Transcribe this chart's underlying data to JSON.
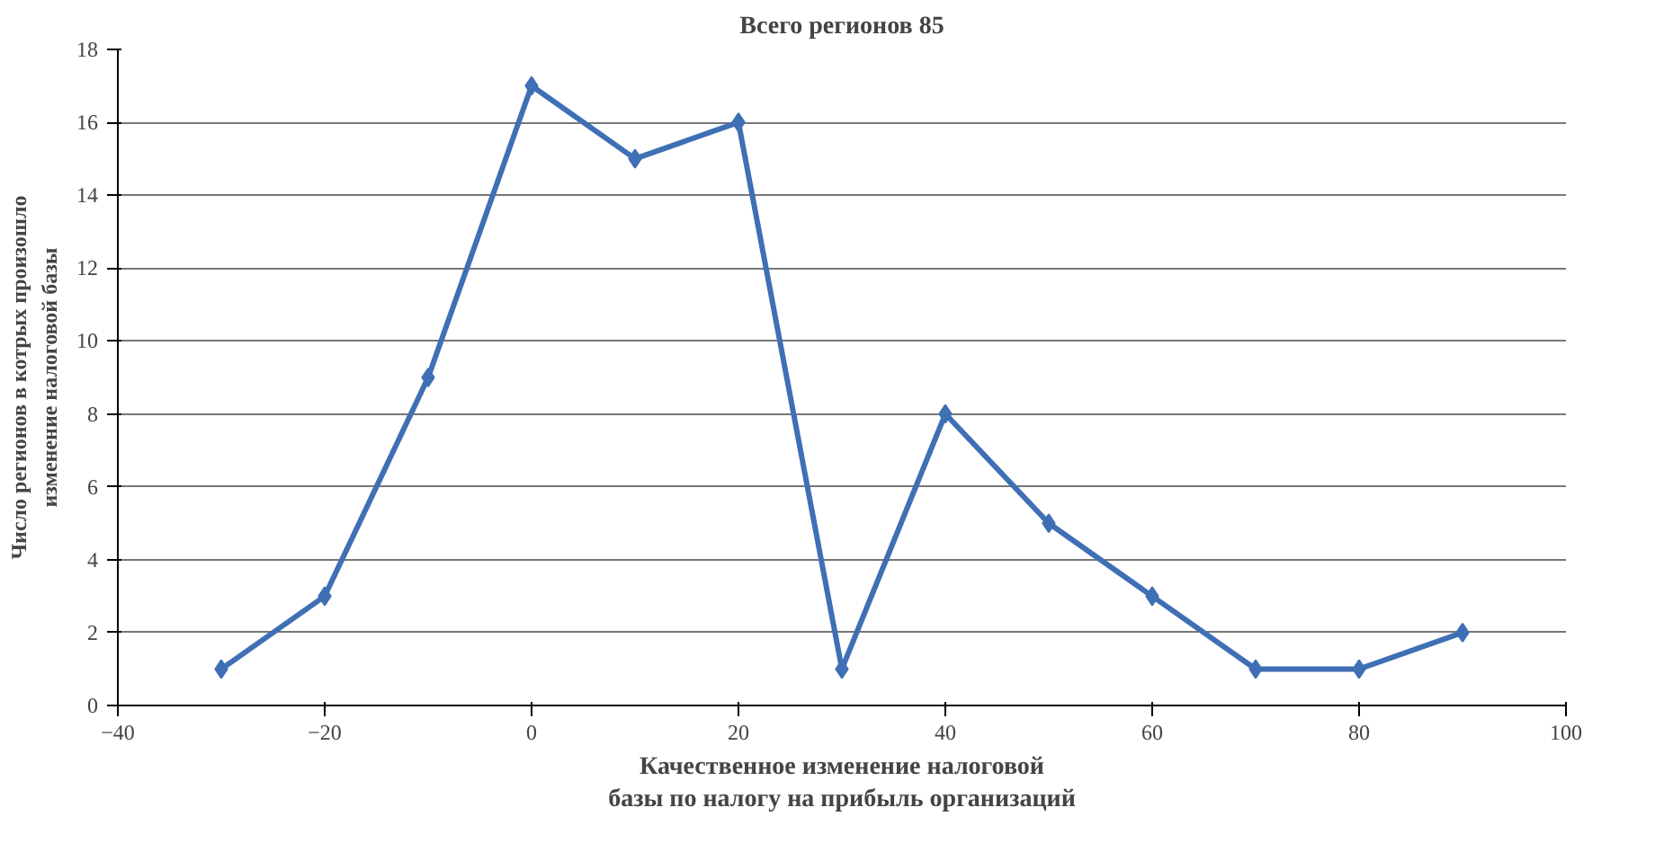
{
  "chart_data": {
    "type": "line",
    "title": "Всего регионов 85",
    "xlabel": "Качественное изменение налоговой базы по налогу на прибыль организаций",
    "ylabel": "Число регионов в котрых произошло изменение налоговой базы",
    "x": [
      -30,
      -20,
      -10,
      0,
      10,
      20,
      30,
      40,
      50,
      60,
      70,
      80,
      90
    ],
    "series": [
      {
        "color": "#3f6fb5",
        "values": [
          1,
          3,
          9,
          17,
          15,
          16,
          1,
          8,
          5,
          3,
          1,
          1,
          2
        ]
      }
    ],
    "xlim": [
      -40,
      100
    ],
    "xticks": [
      -40,
      -20,
      0,
      20,
      40,
      60,
      80,
      100
    ],
    "ylim": [
      0,
      18
    ],
    "yticks": [
      0,
      2,
      4,
      6,
      8,
      10,
      12,
      14,
      16,
      18
    ],
    "grid": "y",
    "marker": "diamond",
    "line_style": "solid"
  }
}
